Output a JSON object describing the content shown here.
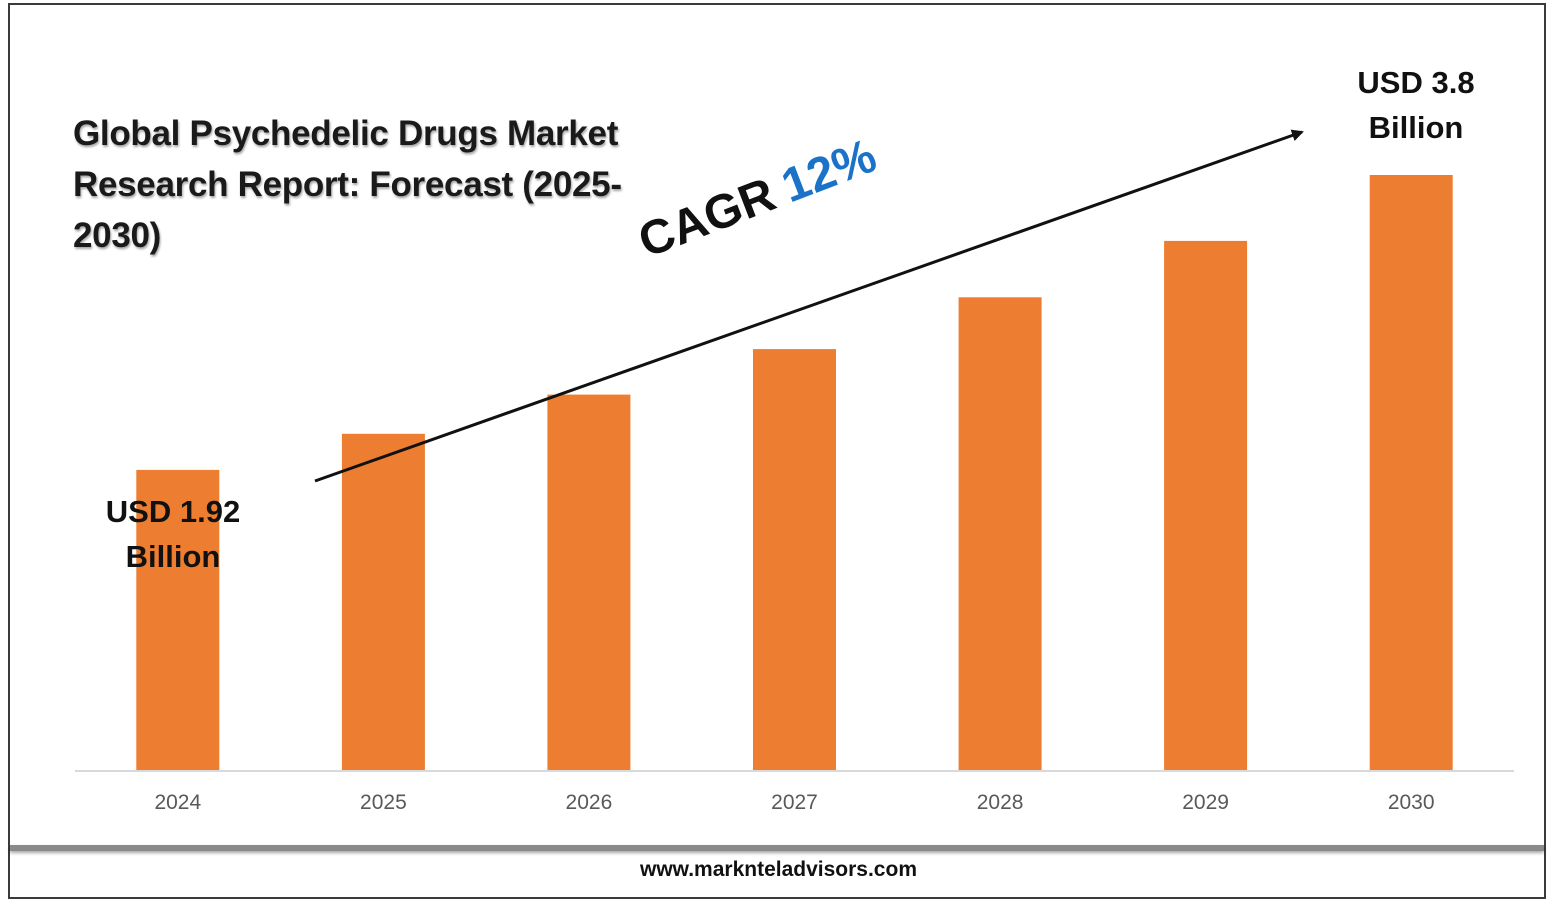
{
  "title": "Global Psychedelic Drugs Market Research Report: Forecast (2025-2030)",
  "annotations": {
    "first_value": "USD 1.92 Billion",
    "last_value": "USD 3.8 Billion",
    "cagr_prefix": "CAGR",
    "cagr_value": "12%"
  },
  "footer": {
    "website": "www.marknteladvisors.com"
  },
  "colors": {
    "bar": "#ED7D31",
    "cagr_value": "#1A73C9",
    "axis": "#D9D9D9",
    "tick_label": "#595959"
  },
  "chart_data": {
    "type": "bar",
    "title": "Global Psychedelic Drugs Market Research Report: Forecast (2025-2030)",
    "xlabel": "",
    "ylabel": "",
    "categories": [
      "2024",
      "2025",
      "2026",
      "2027",
      "2028",
      "2029",
      "2030"
    ],
    "values": [
      1.92,
      2.15,
      2.4,
      2.69,
      3.02,
      3.38,
      3.8
    ],
    "ylim": [
      0,
      3.8
    ],
    "grid": false,
    "legend": "none",
    "annotations": [
      "USD 1.92 Billion",
      "USD 3.8 Billion",
      "CAGR 12%"
    ]
  }
}
